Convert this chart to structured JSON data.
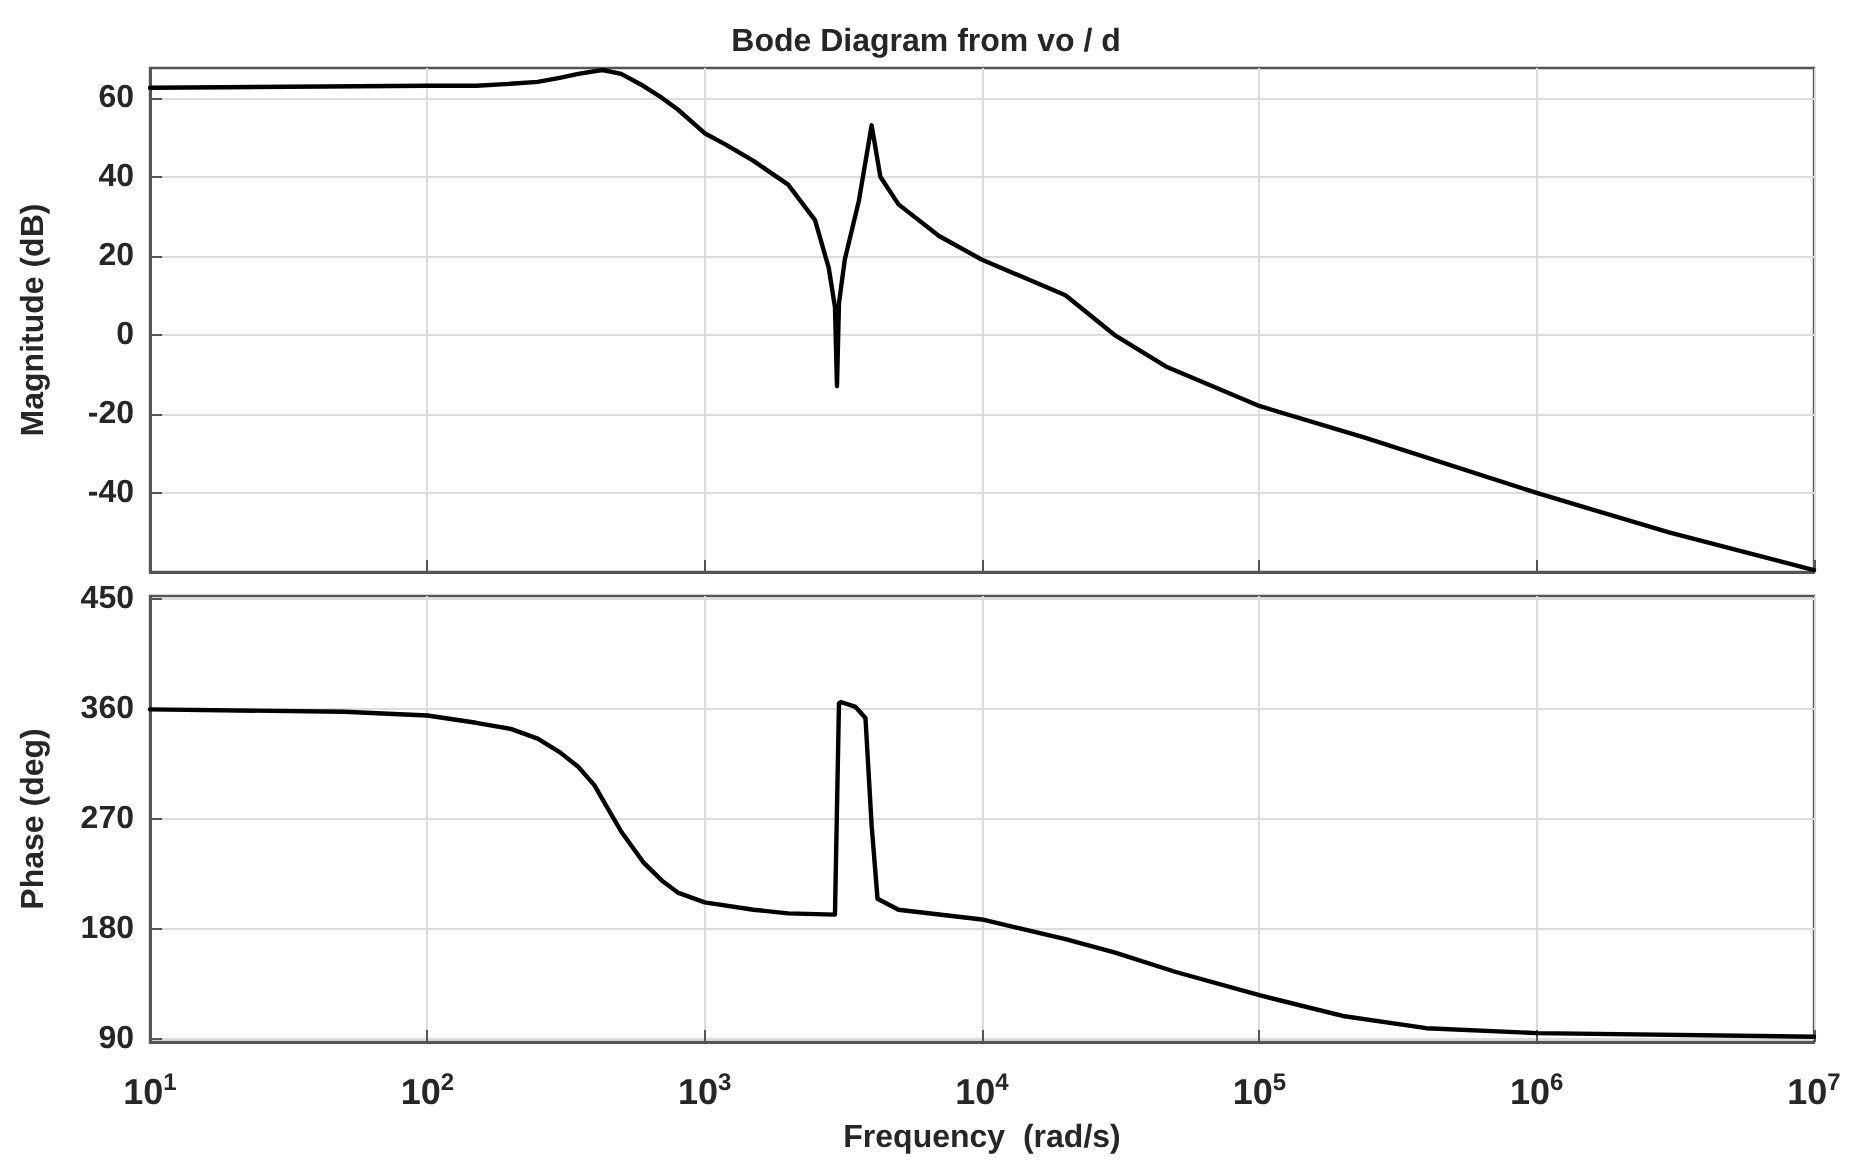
{
  "chart_data": [
    {
      "type": "line",
      "title": "Bode Diagram from vo / d",
      "ylabel": "Magnitude (dB)",
      "x": [
        10,
        100,
        150,
        200,
        250,
        300,
        350,
        428,
        500,
        600,
        700,
        800,
        1000,
        1200,
        1500,
        2000,
        2500,
        2800,
        2950,
        3000,
        3050,
        3200,
        3600,
        4000,
        4300,
        5000,
        7000,
        10000,
        20000,
        30000,
        46000,
        100000,
        240000,
        1000000,
        3000000,
        10000000
      ],
      "series": [
        {
          "color": "#000000",
          "values": [
            62.5,
            63,
            63,
            63.5,
            64,
            65,
            66,
            67,
            66,
            63,
            60,
            57,
            51,
            48,
            44,
            38,
            29,
            17,
            7,
            -13,
            8,
            19,
            34,
            53,
            40,
            33,
            25,
            19,
            10,
            0,
            -8,
            -18,
            -26,
            -40,
            -50,
            -59.5
          ]
        }
      ],
      "xlim": [
        10,
        10000000
      ],
      "ylim": [
        -60,
        67.5
      ],
      "xticks": [
        {
          "value": 10,
          "label": null
        },
        {
          "value": 100,
          "label": null
        },
        {
          "value": 1000,
          "label": null
        },
        {
          "value": 10000,
          "label": null
        },
        {
          "value": 100000,
          "label": null
        },
        {
          "value": 1000000,
          "label": null
        },
        {
          "value": 10000000,
          "label": null
        }
      ],
      "yticks": [
        -40,
        -20,
        0,
        20,
        40,
        60
      ],
      "log": "x",
      "grid": true,
      "marker": "none",
      "line_style": "solid",
      "tick_labels": "y"
    },
    {
      "type": "line",
      "xlabel": "Frequency  (rad/s)",
      "ylabel": "Phase (deg)",
      "x": [
        10,
        50,
        100,
        150,
        200,
        250,
        300,
        350,
        400,
        450,
        500,
        600,
        700,
        800,
        1000,
        1500,
        2000,
        2950,
        3050,
        3100,
        3500,
        3800,
        4000,
        4200,
        5000,
        10000,
        20000,
        30000,
        50000,
        100000,
        200000,
        400000,
        1000000,
        10000000
      ],
      "series": [
        {
          "color": "#000000",
          "values": [
            360,
            358,
            355,
            349,
            344,
            336,
            325,
            313,
            298,
            278,
            260,
            235,
            220,
            210,
            202,
            196,
            193,
            192,
            365,
            366,
            362,
            353,
            265,
            205,
            196,
            188,
            172,
            161,
            145,
            126,
            109,
            99,
            95,
            92
          ]
        }
      ],
      "xlim": [
        10,
        10000000
      ],
      "ylim": [
        87.7,
        452.8
      ],
      "xticks": [
        {
          "value": 10,
          "label": "10$^{1}$"
        },
        {
          "value": 100,
          "label": "10$^{2}$"
        },
        {
          "value": 1000,
          "label": "10$^{3}$"
        },
        {
          "value": 10000,
          "label": "10$^{4}$"
        },
        {
          "value": 100000,
          "label": "10$^{5}$"
        },
        {
          "value": 1000000,
          "label": "10$^{6}$"
        },
        {
          "value": 10000000,
          "label": "10$^{7}$"
        }
      ],
      "yticks": [
        90,
        180,
        270,
        360,
        450
      ],
      "log": "x",
      "grid": true,
      "marker": "none",
      "line_style": "solid"
    }
  ]
}
